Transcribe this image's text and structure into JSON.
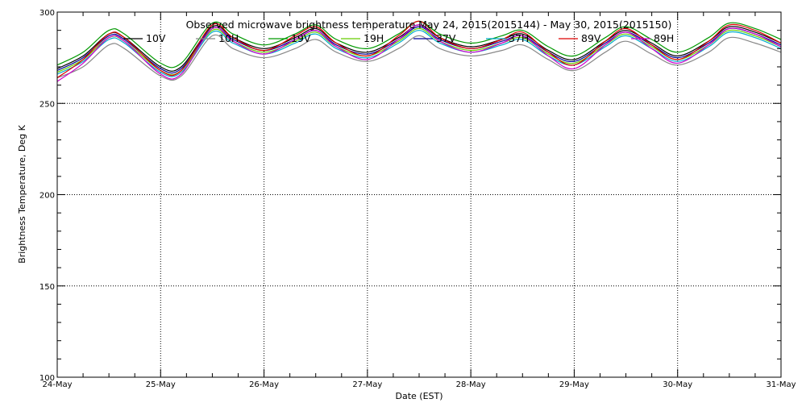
{
  "chart_data": {
    "type": "line",
    "title": "Observed microwave brightness temperature May 24, 2015(2015144) - May 30, 2015(2015150)",
    "xlabel": "Date (EST)",
    "ylabel": "Brightness Temperature, Deg K",
    "ylim": [
      100,
      300
    ],
    "yticks": [
      100,
      150,
      200,
      250,
      300
    ],
    "xticks": [
      "24-May",
      "25-May",
      "26-May",
      "27-May",
      "28-May",
      "29-May",
      "30-May",
      "31-May"
    ],
    "x_range_days": [
      0,
      7
    ],
    "grid": "dotted",
    "legend_position": "top, inside plot",
    "x": [
      0,
      0.25,
      0.5,
      0.65,
      1.0,
      1.2,
      1.5,
      1.7,
      2.0,
      2.3,
      2.5,
      2.7,
      3.0,
      3.3,
      3.5,
      3.7,
      4.0,
      4.3,
      4.5,
      4.75,
      5.0,
      5.3,
      5.5,
      5.75,
      6.0,
      6.3,
      6.5,
      6.75,
      7.0
    ],
    "series": [
      {
        "name": "10V",
        "color": "#000000",
        "values": [
          269,
          276,
          288,
          286,
          270,
          270,
          292,
          286,
          280,
          286,
          291,
          283,
          278,
          286,
          293,
          286,
          281,
          285,
          288,
          279,
          274,
          284,
          290,
          283,
          276,
          284,
          292,
          289,
          283
        ]
      },
      {
        "name": "10H",
        "color": "#888888",
        "values": [
          264,
          270,
          282,
          280,
          265,
          265,
          287,
          280,
          275,
          280,
          285,
          278,
          273,
          280,
          287,
          280,
          276,
          279,
          282,
          274,
          268,
          278,
          284,
          277,
          271,
          278,
          286,
          283,
          278
        ]
      },
      {
        "name": "19V",
        "color": "#009900",
        "values": [
          271,
          278,
          290,
          288,
          272,
          272,
          294,
          288,
          282,
          288,
          293,
          285,
          280,
          288,
          295,
          288,
          283,
          287,
          290,
          281,
          276,
          286,
          292,
          285,
          278,
          286,
          294,
          291,
          285
        ]
      },
      {
        "name": "19H",
        "color": "#66cc00",
        "values": [
          267,
          274,
          286,
          284,
          268,
          268,
          290,
          284,
          278,
          284,
          289,
          281,
          276,
          284,
          291,
          284,
          279,
          283,
          286,
          277,
          272,
          282,
          288,
          281,
          274,
          282,
          290,
          287,
          281
        ]
      },
      {
        "name": "37V",
        "color": "#000099",
        "values": [
          268,
          275,
          287,
          285,
          269,
          269,
          291,
          285,
          279,
          285,
          290,
          282,
          277,
          285,
          292,
          285,
          280,
          284,
          287,
          278,
          273,
          283,
          289,
          282,
          275,
          283,
          291,
          288,
          282
        ]
      },
      {
        "name": "37H",
        "color": "#00aacc",
        "values": [
          266,
          273,
          285,
          283,
          267,
          267,
          289,
          283,
          277,
          283,
          288,
          280,
          275,
          283,
          290,
          283,
          278,
          282,
          285,
          276,
          271,
          281,
          287,
          280,
          273,
          281,
          289,
          286,
          280
        ]
      },
      {
        "name": "89V",
        "color": "#dd0000",
        "values": [
          264,
          274,
          288,
          286,
          268,
          268,
          293,
          286,
          279,
          287,
          292,
          283,
          276,
          287,
          295,
          286,
          280,
          285,
          289,
          278,
          271,
          284,
          291,
          282,
          274,
          284,
          293,
          290,
          283
        ]
      },
      {
        "name": "89H",
        "color": "#cc00cc",
        "values": [
          262,
          272,
          286,
          284,
          266,
          266,
          291,
          284,
          277,
          285,
          290,
          281,
          274,
          285,
          293,
          284,
          278,
          283,
          287,
          276,
          269,
          282,
          289,
          280,
          272,
          282,
          291,
          288,
          281
        ]
      }
    ]
  }
}
